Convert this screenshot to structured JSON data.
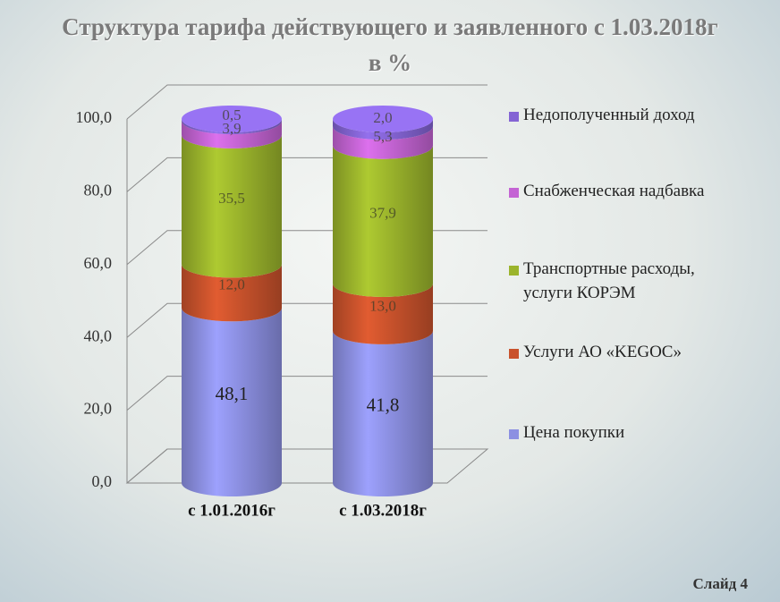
{
  "title": "Структура тарифа действующего и заявленного с 1.03.2018г в %",
  "footer": "Слайд 4",
  "chart_data": {
    "type": "stacked_cylinder",
    "categories": [
      "с 1.01.2016г",
      "с 1.03.2018г"
    ],
    "series": [
      {
        "name": "Цена покупки",
        "color": "#8c90e2",
        "values": [
          48.1,
          41.8
        ],
        "value_labels": [
          "48,1",
          "41,8"
        ]
      },
      {
        "name": "Услуги АО «KEGOC»",
        "color": "#c9522c",
        "values": [
          12.0,
          13.0
        ],
        "value_labels": [
          "12,0",
          "13,0"
        ]
      },
      {
        "name": "Транспортные расходы, услуги КОРЭМ",
        "color": "#9bb42c",
        "values": [
          35.5,
          37.9
        ],
        "value_labels": [
          "35,5",
          "37,9"
        ]
      },
      {
        "name": "Снабженческая надбавка",
        "color": "#c464d4",
        "values": [
          3.9,
          5.3
        ],
        "value_labels": [
          "3,9",
          "5,3"
        ]
      },
      {
        "name": "Недополученный доход",
        "color": "#8464d4",
        "values": [
          0.5,
          2.0
        ],
        "value_labels": [
          "0,5",
          "2,0"
        ]
      }
    ],
    "ylim": [
      0,
      100
    ],
    "yticks": [
      {
        "value": 0,
        "label": "0,0"
      },
      {
        "value": 20,
        "label": "20,0"
      },
      {
        "value": 40,
        "label": "40,0"
      },
      {
        "value": 60,
        "label": "60,0"
      },
      {
        "value": 80,
        "label": "80,0"
      },
      {
        "value": 100,
        "label": "100,0"
      }
    ],
    "grid": true
  }
}
